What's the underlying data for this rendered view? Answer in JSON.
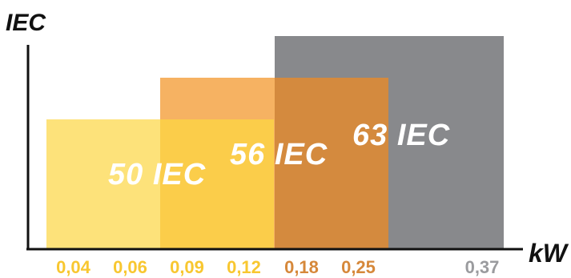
{
  "chart_data": {
    "type": "bar",
    "y_axis_title": "IEC",
    "x_axis_title": "kW",
    "ticks": [
      {
        "label": "0,04",
        "value": 0.04,
        "color": "#f8c730"
      },
      {
        "label": "0,06",
        "value": 0.06,
        "color": "#f8c730"
      },
      {
        "label": "0,09",
        "value": 0.09,
        "color": "#f8c730"
      },
      {
        "label": "0,12",
        "value": 0.12,
        "color": "#f8c730"
      },
      {
        "label": "0,18",
        "value": 0.18,
        "color": "#d6883a"
      },
      {
        "label": "0,25",
        "value": 0.25,
        "color": "#d6883a"
      },
      {
        "label": "0,37",
        "value": 0.37,
        "color": "#9a9b9e"
      }
    ],
    "frame_sizes": [
      {
        "label": "50 IEC",
        "size": 50,
        "from_kw": 0.04,
        "to_kw": 0.12,
        "color": "#fde27a"
      },
      {
        "label": "56 IEC",
        "size": 56,
        "from_kw": 0.09,
        "to_kw": 0.25,
        "color": "#f6b262"
      },
      {
        "label": "63 IEC",
        "size": 63,
        "from_kw": 0.18,
        "to_kw": 0.37,
        "color": "#88898c"
      }
    ],
    "overlap_colors": {
      "50-56": "#fbcd4a",
      "56-63": "#d48a3e"
    },
    "grid": false
  }
}
